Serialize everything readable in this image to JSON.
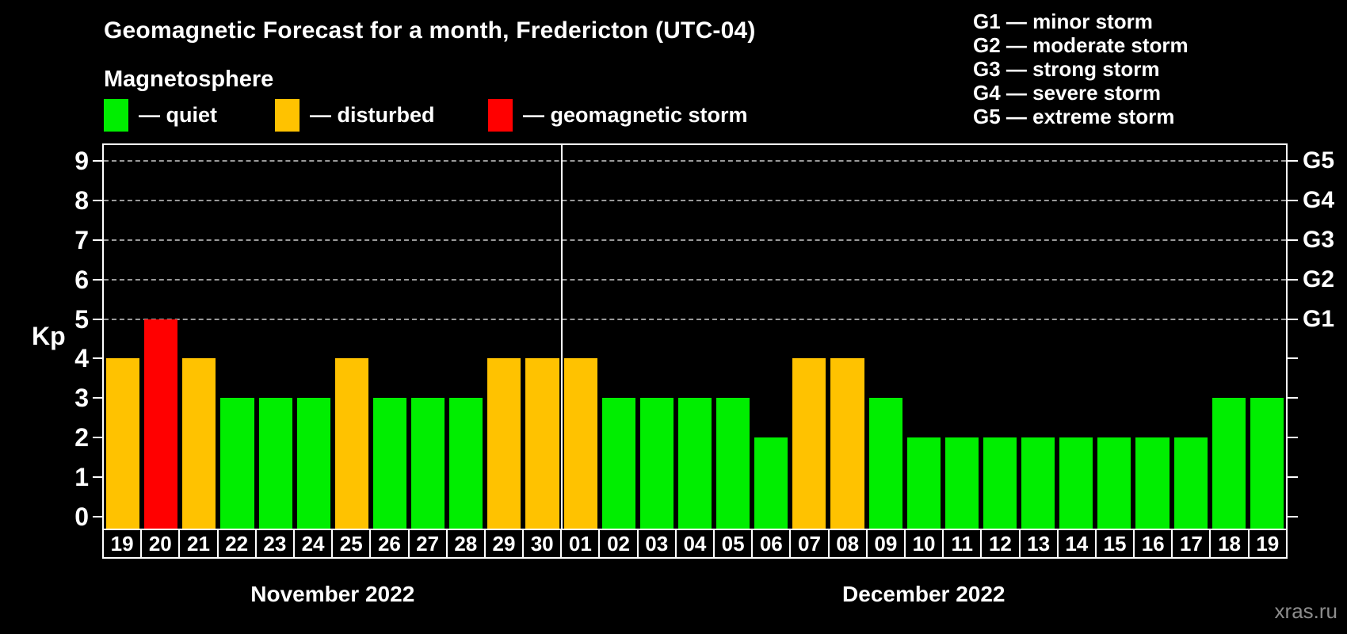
{
  "title": "Geomagnetic Forecast for a month, Fredericton (UTC-04)",
  "subtitle": "Magnetosphere",
  "watermark": "xras.ru",
  "colors": {
    "quiet": "#00ee00",
    "disturbed": "#ffc200",
    "storm": "#ff0000",
    "background": "#000000",
    "axis": "#ffffff",
    "grid": "#9a9a9a",
    "watermark": "#8c8c8c"
  },
  "legend": [
    {
      "key": "quiet",
      "label": "— quiet"
    },
    {
      "key": "disturbed",
      "label": "— disturbed"
    },
    {
      "key": "storm",
      "label": "— geomagnetic storm"
    }
  ],
  "g_legend": [
    "G1 — minor storm",
    "G2 — moderate storm",
    "G3 — strong storm",
    "G4 — severe storm",
    "G5 — extreme storm"
  ],
  "chart_data": {
    "type": "bar",
    "ylabel": "Kp",
    "ylim": [
      0,
      9.4
    ],
    "yticks": [
      0,
      1,
      2,
      3,
      4,
      5,
      6,
      7,
      8,
      9
    ],
    "grid_levels": [
      5,
      6,
      7,
      8,
      9
    ],
    "grid_style": "dashed",
    "legend_position": "top",
    "right_labels": [
      {
        "level": 5,
        "text": "G1"
      },
      {
        "level": 6,
        "text": "G2"
      },
      {
        "level": 7,
        "text": "G3"
      },
      {
        "level": 8,
        "text": "G4"
      },
      {
        "level": 9,
        "text": "G5"
      }
    ],
    "months": [
      {
        "label": "November 2022",
        "count": 12
      },
      {
        "label": "December 2022",
        "count": 19
      }
    ],
    "categories": [
      "19",
      "20",
      "21",
      "22",
      "23",
      "24",
      "25",
      "26",
      "27",
      "28",
      "29",
      "30",
      "01",
      "02",
      "03",
      "04",
      "05",
      "06",
      "07",
      "08",
      "09",
      "10",
      "11",
      "12",
      "13",
      "14",
      "15",
      "16",
      "17",
      "18",
      "19"
    ],
    "values": [
      4,
      5,
      4,
      3,
      3,
      3,
      4,
      3,
      3,
      3,
      4,
      4,
      4,
      3,
      3,
      3,
      3,
      2,
      4,
      4,
      3,
      2,
      2,
      2,
      2,
      2,
      2,
      2,
      2,
      3,
      3
    ],
    "statuses": [
      "disturbed",
      "storm",
      "disturbed",
      "quiet",
      "quiet",
      "quiet",
      "disturbed",
      "quiet",
      "quiet",
      "quiet",
      "disturbed",
      "disturbed",
      "disturbed",
      "quiet",
      "quiet",
      "quiet",
      "quiet",
      "quiet",
      "disturbed",
      "disturbed",
      "quiet",
      "quiet",
      "quiet",
      "quiet",
      "quiet",
      "quiet",
      "quiet",
      "quiet",
      "quiet",
      "quiet",
      "quiet"
    ]
  }
}
